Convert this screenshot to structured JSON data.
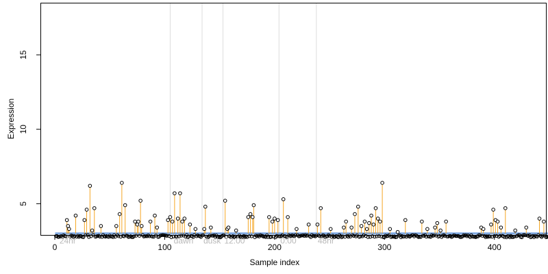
{
  "chart_data": {
    "type": "scatter",
    "title": "",
    "xlabel": "Sample index",
    "ylabel": "Expression",
    "xlim": [
      0,
      460
    ],
    "ylim": [
      2.9,
      18.5
    ],
    "x_ticks": [
      0,
      100,
      200,
      300,
      400
    ],
    "y_ticks": [
      5,
      10,
      15
    ],
    "grid": false,
    "baseline": 3.0,
    "n_samples": 460,
    "colors": {
      "points": "#000000",
      "stems": "#f5a623",
      "baseline_markers": "#7fa8e0",
      "segment_lines": "#dddddd",
      "segment_labels": "#b8b8b8",
      "axis": "#000000"
    },
    "segment_boundaries": [
      105,
      134,
      153,
      204,
      238
    ],
    "segment_labels": [
      {
        "x": 3,
        "text": "24hr"
      },
      {
        "x": 107,
        "text": "dawn"
      },
      {
        "x": 134,
        "text": "dusk"
      },
      {
        "x": 153,
        "text": "12:00"
      },
      {
        "x": 204,
        "text": "0:00"
      },
      {
        "x": 238,
        "text": "48hr"
      }
    ],
    "peaks": [
      {
        "x": 11,
        "y": 3.9
      },
      {
        "x": 12,
        "y": 3.5
      },
      {
        "x": 13,
        "y": 3.3
      },
      {
        "x": 19,
        "y": 4.2
      },
      {
        "x": 27,
        "y": 3.9
      },
      {
        "x": 29,
        "y": 4.6
      },
      {
        "x": 32,
        "y": 6.2
      },
      {
        "x": 34,
        "y": 3.2
      },
      {
        "x": 36,
        "y": 4.7
      },
      {
        "x": 42,
        "y": 3.5
      },
      {
        "x": 56,
        "y": 3.5
      },
      {
        "x": 59,
        "y": 4.3
      },
      {
        "x": 61,
        "y": 6.4
      },
      {
        "x": 64,
        "y": 4.9
      },
      {
        "x": 73,
        "y": 3.8
      },
      {
        "x": 75,
        "y": 3.6
      },
      {
        "x": 76,
        "y": 3.8
      },
      {
        "x": 78,
        "y": 5.2
      },
      {
        "x": 79,
        "y": 3.5
      },
      {
        "x": 87,
        "y": 3.8
      },
      {
        "x": 91,
        "y": 4.2
      },
      {
        "x": 93,
        "y": 3.4
      },
      {
        "x": 103,
        "y": 3.9
      },
      {
        "x": 105,
        "y": 4.1
      },
      {
        "x": 107,
        "y": 3.8
      },
      {
        "x": 109,
        "y": 5.7
      },
      {
        "x": 112,
        "y": 4.0
      },
      {
        "x": 114,
        "y": 5.7
      },
      {
        "x": 116,
        "y": 3.8
      },
      {
        "x": 118,
        "y": 4.0
      },
      {
        "x": 123,
        "y": 3.6
      },
      {
        "x": 128,
        "y": 3.3
      },
      {
        "x": 136,
        "y": 3.3
      },
      {
        "x": 137,
        "y": 4.8
      },
      {
        "x": 142,
        "y": 3.4
      },
      {
        "x": 155,
        "y": 5.2
      },
      {
        "x": 157,
        "y": 3.3
      },
      {
        "x": 158,
        "y": 3.4
      },
      {
        "x": 165,
        "y": 3.2
      },
      {
        "x": 176,
        "y": 4.1
      },
      {
        "x": 178,
        "y": 4.3
      },
      {
        "x": 180,
        "y": 4.1
      },
      {
        "x": 181,
        "y": 4.9
      },
      {
        "x": 195,
        "y": 4.1
      },
      {
        "x": 198,
        "y": 3.8
      },
      {
        "x": 200,
        "y": 4.0
      },
      {
        "x": 203,
        "y": 3.9
      },
      {
        "x": 208,
        "y": 5.3
      },
      {
        "x": 212,
        "y": 4.1
      },
      {
        "x": 220,
        "y": 3.3
      },
      {
        "x": 231,
        "y": 3.6
      },
      {
        "x": 239,
        "y": 3.6
      },
      {
        "x": 242,
        "y": 4.7
      },
      {
        "x": 251,
        "y": 3.3
      },
      {
        "x": 263,
        "y": 3.4
      },
      {
        "x": 265,
        "y": 3.8
      },
      {
        "x": 270,
        "y": 3.4
      },
      {
        "x": 273,
        "y": 4.3
      },
      {
        "x": 276,
        "y": 4.8
      },
      {
        "x": 279,
        "y": 3.5
      },
      {
        "x": 282,
        "y": 3.8
      },
      {
        "x": 284,
        "y": 3.3
      },
      {
        "x": 286,
        "y": 3.7
      },
      {
        "x": 288,
        "y": 4.2
      },
      {
        "x": 290,
        "y": 3.6
      },
      {
        "x": 292,
        "y": 4.7
      },
      {
        "x": 294,
        "y": 4.0
      },
      {
        "x": 296,
        "y": 3.8
      },
      {
        "x": 298,
        "y": 6.4
      },
      {
        "x": 305,
        "y": 3.3
      },
      {
        "x": 312,
        "y": 3.1
      },
      {
        "x": 319,
        "y": 3.9
      },
      {
        "x": 334,
        "y": 3.8
      },
      {
        "x": 339,
        "y": 3.3
      },
      {
        "x": 346,
        "y": 3.4
      },
      {
        "x": 348,
        "y": 3.7
      },
      {
        "x": 351,
        "y": 3.2
      },
      {
        "x": 356,
        "y": 3.8
      },
      {
        "x": 388,
        "y": 3.4
      },
      {
        "x": 390,
        "y": 3.3
      },
      {
        "x": 397,
        "y": 3.6
      },
      {
        "x": 399,
        "y": 4.6
      },
      {
        "x": 401,
        "y": 3.9
      },
      {
        "x": 403,
        "y": 3.8
      },
      {
        "x": 406,
        "y": 3.4
      },
      {
        "x": 410,
        "y": 4.7
      },
      {
        "x": 419,
        "y": 3.2
      },
      {
        "x": 429,
        "y": 3.4
      },
      {
        "x": 441,
        "y": 4.0
      },
      {
        "x": 445,
        "y": 3.8
      },
      {
        "x": 452,
        "y": 4.7
      },
      {
        "x": 456,
        "y": 3.6
      },
      {
        "x": 458,
        "y": 3.2
      }
    ],
    "low_band": [
      {
        "from": 1,
        "to": 460,
        "y": 2.82,
        "jitter": 0.08
      }
    ],
    "label_y": 2.15
  }
}
